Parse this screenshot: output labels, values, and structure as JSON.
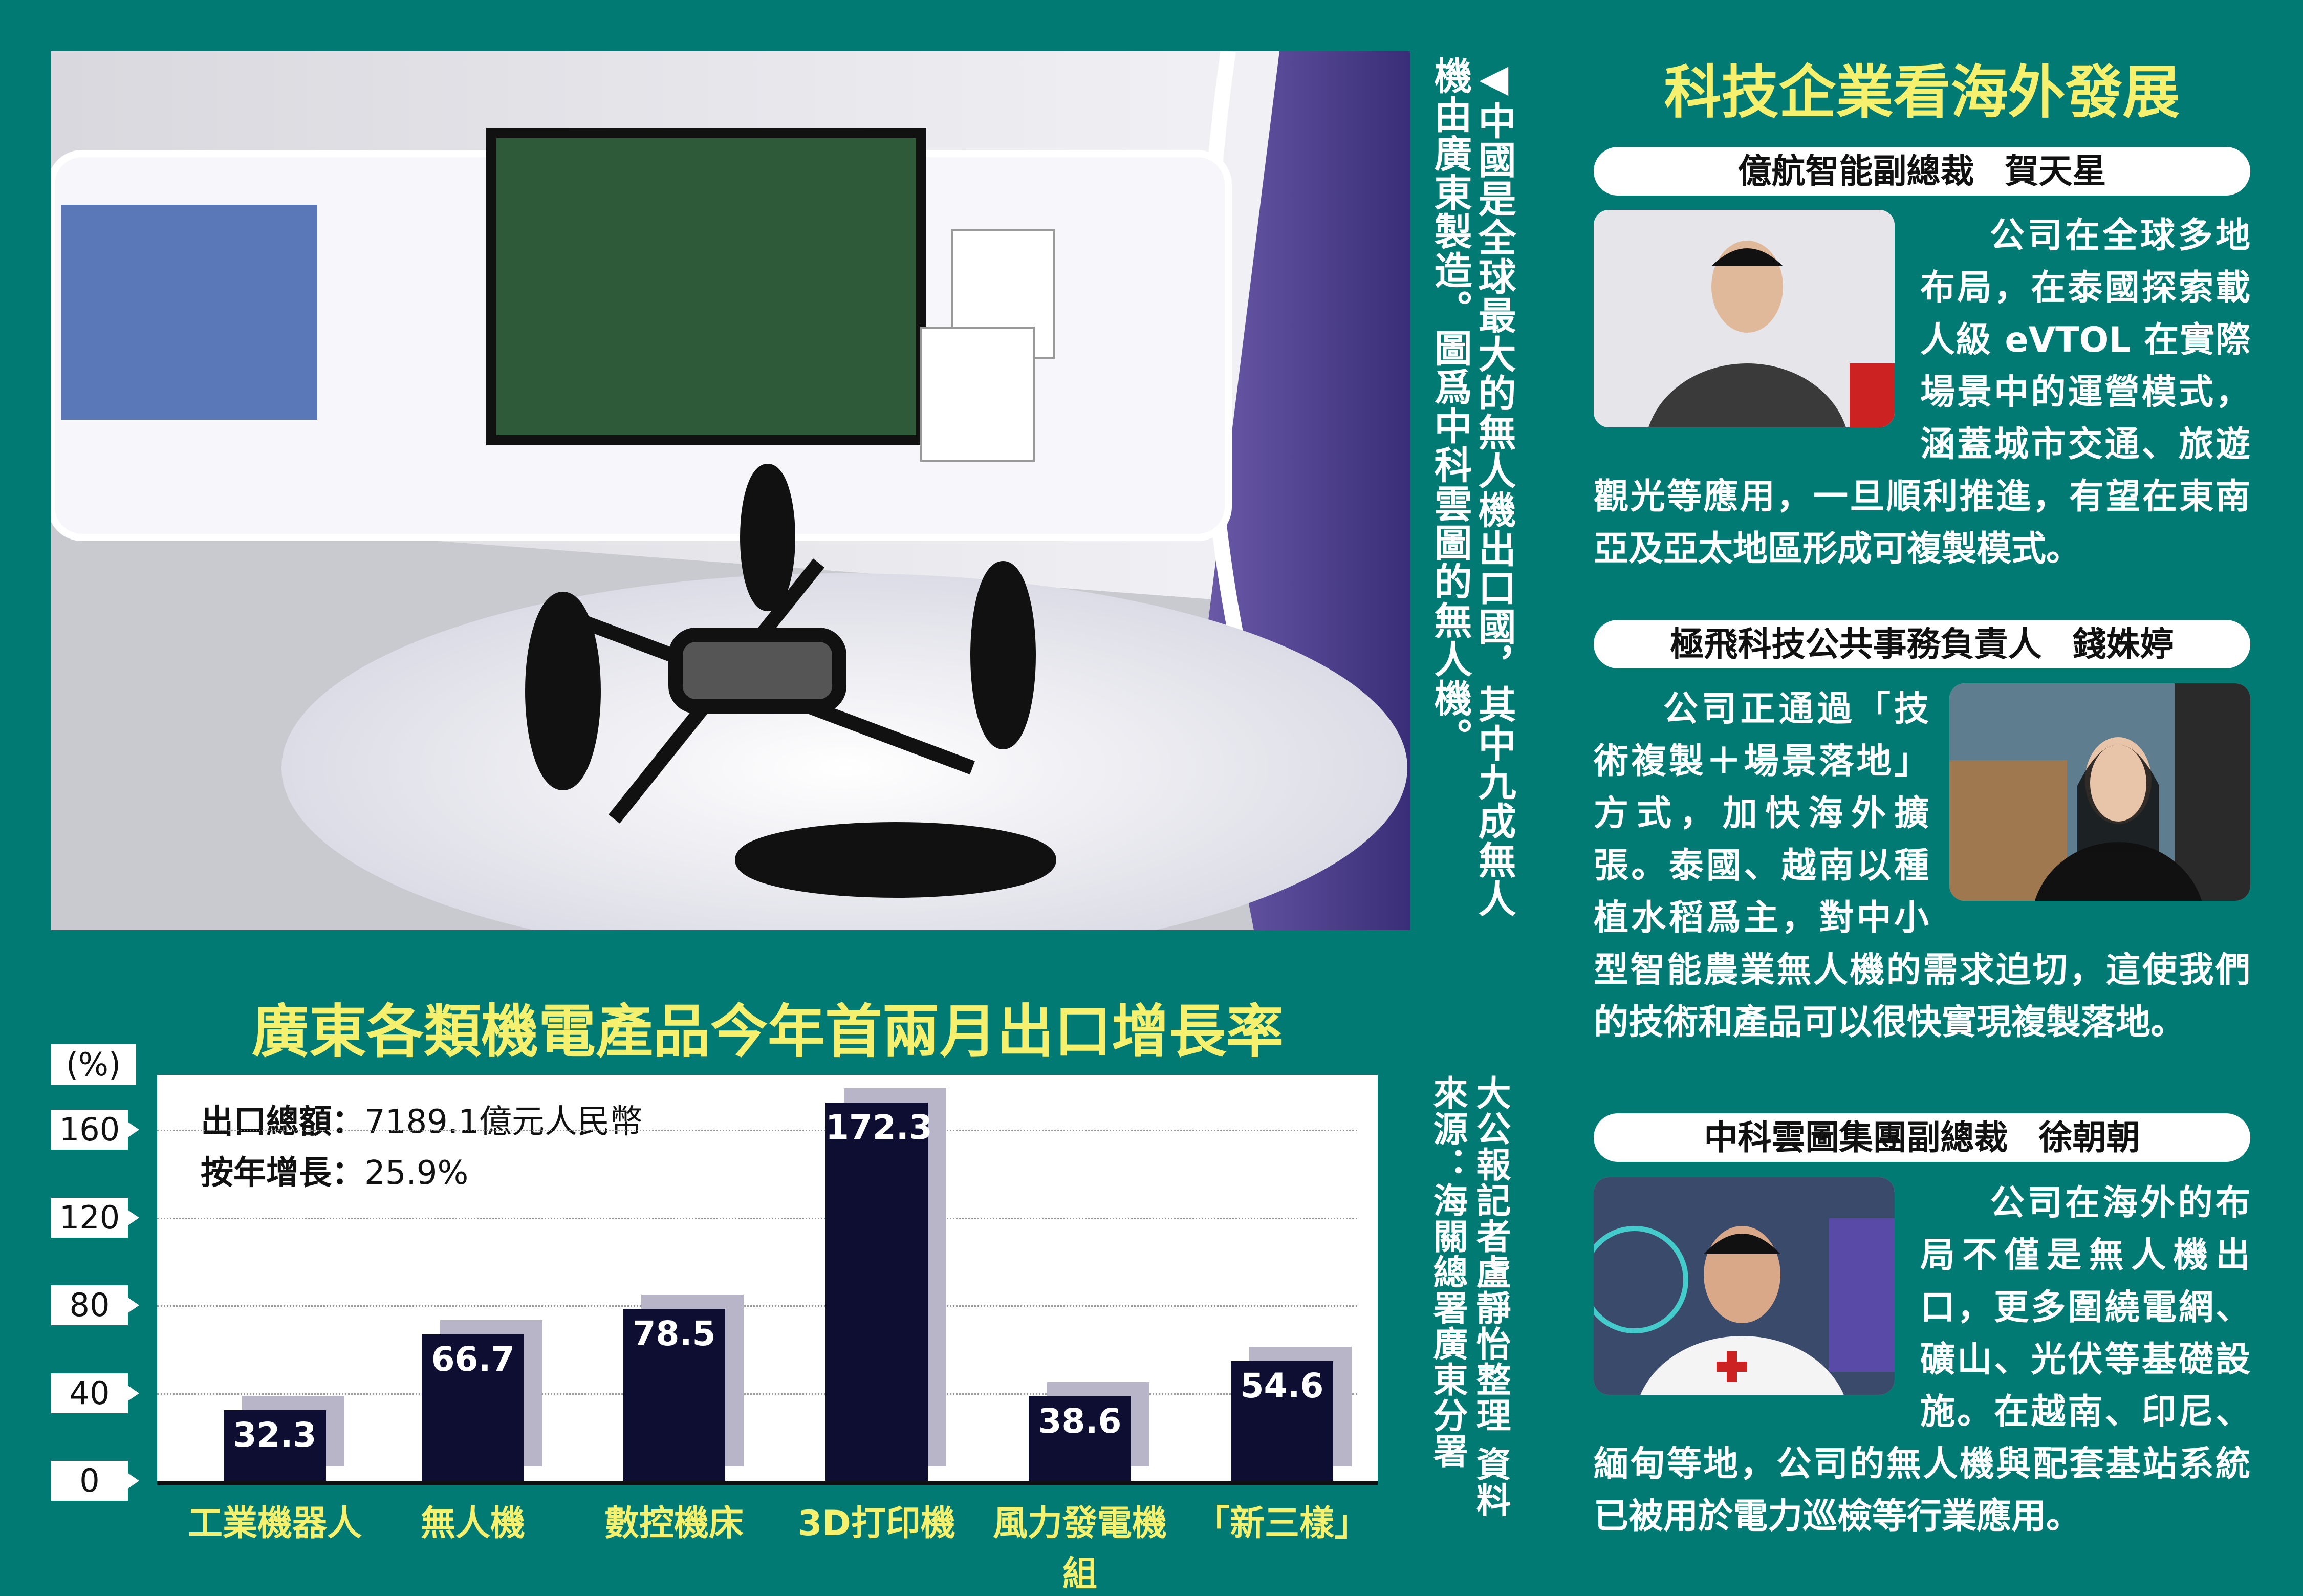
{
  "photo": {
    "description_icon": "drone-showroom-photo"
  },
  "caption": "◀中國是全球最大的無人機出口國，其中九成無人機由廣東製造。圖爲中科雲圖的無人機。",
  "chart_data": {
    "type": "bar",
    "title": "廣東各類機電產品今年首兩月出口增長率",
    "ylabel": "(%)",
    "xlabel": "",
    "ylim": [
      0,
      185
    ],
    "yticks": [
      0,
      40,
      80,
      120,
      160
    ],
    "grid": true,
    "categories": [
      "工業機器人",
      "無人機",
      "數控機床",
      "3D打印機",
      "風力發電機組",
      "「新三樣」"
    ],
    "values": [
      32.3,
      66.7,
      78.5,
      172.3,
      38.6,
      54.6
    ],
    "value_labels": [
      "32.3",
      "66.7",
      "78.5",
      "172.3",
      "38.6",
      "54.6"
    ],
    "annotations": [
      {
        "label": "出口總額：",
        "value": "7189.1億元人民幣"
      },
      {
        "label": "按年增長：",
        "value": "25.9%"
      }
    ],
    "colors": {
      "bar": "#0e0e33",
      "shadow": "#b8b5c8"
    }
  },
  "source": "大公報記者盧靜怡整理  資料來源：海關總署廣東分署",
  "right": {
    "title": "科技企業看海外發展",
    "sections": [
      {
        "role": "億航智能副總裁",
        "name": "賀天星",
        "text": "公司在全球多地布局，在泰國探索載人級 eVTOL 在實際場景中的運營模式，涵蓋城市交通、旅遊觀光等應用，一旦順利推進，有望在東南亞及亞太地區形成可複製模式。"
      },
      {
        "role": "極飛科技公共事務負責人",
        "name": "錢姝婷",
        "text": "公司正通過「技術複製＋場景落地」方式，加快海外擴張。泰國、越南以種植水稻爲主，對中小型智能農業無人機的需求迫切，這使我們的技術和產品可以很快實現複製落地。"
      },
      {
        "role": "中科雲圖集團副總裁",
        "name": "徐朝朝",
        "text": "公司在海外的布局不僅是無人機出口，更多圍繞電網、礦山、光伏等基礎設施。在越南、印尼、緬甸等地，公司的無人機與配套基站系統已被用於電力巡檢等行業應用。"
      }
    ]
  },
  "colors": {
    "background": "#007a72",
    "accent": "#f5f06e"
  }
}
